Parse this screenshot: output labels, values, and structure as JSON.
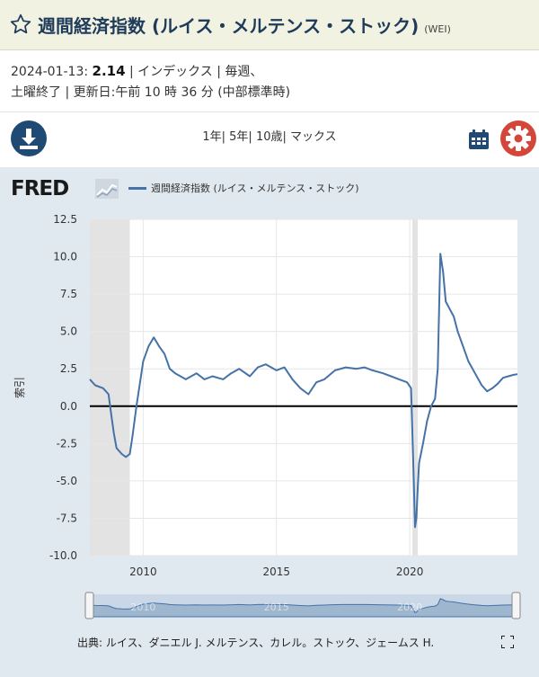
{
  "header": {
    "title": "週間経済指数 (ルイス・メルテンス・ストック)",
    "ticker": "(WEI)",
    "star_icon": "star-outline-icon"
  },
  "meta": {
    "date": "2024-01-13:",
    "value": "2.14",
    "line1_rest": "| インデックス | 毎週、",
    "line2": "土曜終了 | 更新日:午前 10 時 36 分 (中部標準時)"
  },
  "toolbar": {
    "download_icon": "download-icon",
    "range_1y": "1年",
    "sep1": "|",
    "range_5y": "5年",
    "sep2": "|",
    "range_10y": "10歳",
    "sep3": "|",
    "range_max": "マックス",
    "calendar_icon": "calendar-icon",
    "settings_icon": "gear-icon"
  },
  "logo": {
    "text": "FRED",
    "icon": "fred-chart-icon"
  },
  "legend": {
    "label": "週間経済指数 (ルイス・メルテンス・ストック)",
    "color": "#4572a7"
  },
  "source": {
    "text": "出典: ルイス、ダニエル J. メルテンス、カレル。ストック、ジェームス H.",
    "expand_icon": "fullscreen-icon"
  },
  "colors": {
    "line": "#4572a7",
    "plot_bg": "#ffffff",
    "chart_bg": "#e1e9f0",
    "recession": "#e3e3e3",
    "zero_line": "#000000",
    "title": "#1e3b5a"
  },
  "chart_data": {
    "type": "line",
    "title": "週間経済指数 (ルイス・メルテンス・ストック)",
    "xlabel": "",
    "ylabel": "索引",
    "ylim": [
      -10,
      12.5
    ],
    "xlim": [
      2008.0,
      2024.04
    ],
    "yticks": [
      "12.5",
      "10.0",
      "7.5",
      "5.0",
      "2.5",
      "0.0",
      "-2.5",
      "-5.0",
      "-7.5",
      "-10.0"
    ],
    "xticks": [
      "2010",
      "2015",
      "2020"
    ],
    "grid": true,
    "recessions": [
      [
        2008.0,
        2009.5
      ],
      [
        2020.1,
        2020.3
      ]
    ],
    "series": [
      {
        "name": "週間経済指数 (ルイス・メルテンス・ストック)",
        "x": [
          2008.0,
          2008.2,
          2008.5,
          2008.7,
          2008.8,
          2008.9,
          2009.0,
          2009.2,
          2009.35,
          2009.5,
          2009.6,
          2009.75,
          2009.9,
          2010.0,
          2010.2,
          2010.4,
          2010.6,
          2010.8,
          2011.0,
          2011.2,
          2011.4,
          2011.6,
          2011.8,
          2012.0,
          2012.3,
          2012.6,
          2013.0,
          2013.3,
          2013.6,
          2014.0,
          2014.3,
          2014.6,
          2015.0,
          2015.3,
          2015.6,
          2015.9,
          2016.2,
          2016.5,
          2016.8,
          2017.2,
          2017.6,
          2018.0,
          2018.3,
          2018.6,
          2019.0,
          2019.3,
          2019.6,
          2019.9,
          2020.05,
          2020.15,
          2020.2,
          2020.25,
          2020.3,
          2020.35,
          2020.5,
          2020.65,
          2020.8,
          2020.95,
          2021.05,
          2021.15,
          2021.25,
          2021.35,
          2021.5,
          2021.65,
          2021.8,
          2022.0,
          2022.2,
          2022.45,
          2022.7,
          2022.9,
          2023.1,
          2023.3,
          2023.5,
          2023.7,
          2023.9,
          2024.04
        ],
        "values": [
          1.8,
          1.4,
          1.2,
          0.8,
          -0.5,
          -1.8,
          -2.8,
          -3.2,
          -3.4,
          -3.2,
          -2.0,
          0.0,
          1.8,
          3.0,
          4.0,
          4.6,
          4.0,
          3.5,
          2.5,
          2.2,
          2.0,
          1.8,
          2.0,
          2.2,
          1.8,
          2.0,
          1.8,
          2.2,
          2.5,
          2.0,
          2.6,
          2.8,
          2.4,
          2.6,
          1.8,
          1.2,
          0.8,
          1.6,
          1.8,
          2.4,
          2.6,
          2.5,
          2.6,
          2.4,
          2.2,
          2.0,
          1.8,
          1.6,
          1.2,
          -5.0,
          -8.1,
          -7.5,
          -5.5,
          -3.8,
          -2.5,
          -1.0,
          0.0,
          0.5,
          2.5,
          10.2,
          9.0,
          7.0,
          6.5,
          6.0,
          5.0,
          4.0,
          3.0,
          2.2,
          1.4,
          1.0,
          1.2,
          1.5,
          1.9,
          2.0,
          2.1,
          2.14
        ]
      }
    ]
  }
}
